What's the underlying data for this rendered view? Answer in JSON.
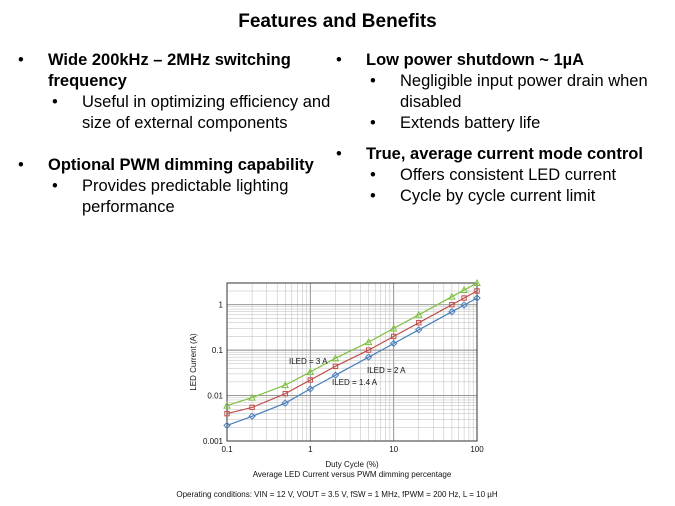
{
  "slide": {
    "title": "Features and Benefits",
    "left": [
      {
        "heading": "Wide 200kHz – 2MHz switching frequency",
        "subs": [
          "Useful in optimizing efficiency and size of external components"
        ]
      },
      {
        "heading": "Optional PWM dimming capability",
        "subs": [
          "Provides predictable lighting performance"
        ]
      }
    ],
    "right": [
      {
        "heading": "Low power shutdown ~ 1µA",
        "subs": [
          "Negligible input power drain when disabled",
          "Extends battery life"
        ]
      },
      {
        "heading": "True, average current mode control",
        "subs": [
          "Offers consistent LED current",
          "Cycle by cycle current limit"
        ]
      }
    ]
  },
  "chart_data": {
    "type": "line",
    "xscale": "log",
    "yscale": "log",
    "xlim": [
      0.1,
      100
    ],
    "ylim": [
      0.001,
      3
    ],
    "xticks": [
      "0.1",
      "1",
      "10",
      "100"
    ],
    "yticks": [
      "0.001",
      "0.01",
      "0.1",
      "1"
    ],
    "xlabel": "Duty Cycle (%)",
    "ylabel": "LED Current (A)",
    "caption": "Average LED Current versus PWM dimming percentage",
    "conditions": "Operating conditions: VIN = 12 V, VOUT = 3.5 V, fSW = 1 MHz, fPWM = 200 Hz, L = 10 µH",
    "series": [
      {
        "name": "ILED = 3 A",
        "color": "#7fbf3f",
        "marker": "triangle",
        "x": [
          0.1,
          0.2,
          0.5,
          1,
          2,
          5,
          10,
          20,
          50,
          70,
          100
        ],
        "y": [
          0.006,
          0.009,
          0.017,
          0.033,
          0.066,
          0.15,
          0.3,
          0.6,
          1.5,
          2.1,
          3
        ]
      },
      {
        "name": "ILED = 2 A",
        "color": "#c0504d",
        "marker": "square",
        "x": [
          0.1,
          0.2,
          0.5,
          1,
          2,
          5,
          10,
          20,
          50,
          70,
          100
        ],
        "y": [
          0.004,
          0.0055,
          0.011,
          0.022,
          0.044,
          0.1,
          0.2,
          0.4,
          1.0,
          1.4,
          2
        ]
      },
      {
        "name": "ILED = 1.4 A",
        "color": "#4a7ebb",
        "marker": "diamond",
        "x": [
          0.1,
          0.2,
          0.5,
          1,
          2,
          5,
          10,
          20,
          50,
          70,
          100
        ],
        "y": [
          0.0022,
          0.0035,
          0.0068,
          0.014,
          0.028,
          0.07,
          0.14,
          0.28,
          0.7,
          0.98,
          1.4
        ]
      }
    ]
  }
}
